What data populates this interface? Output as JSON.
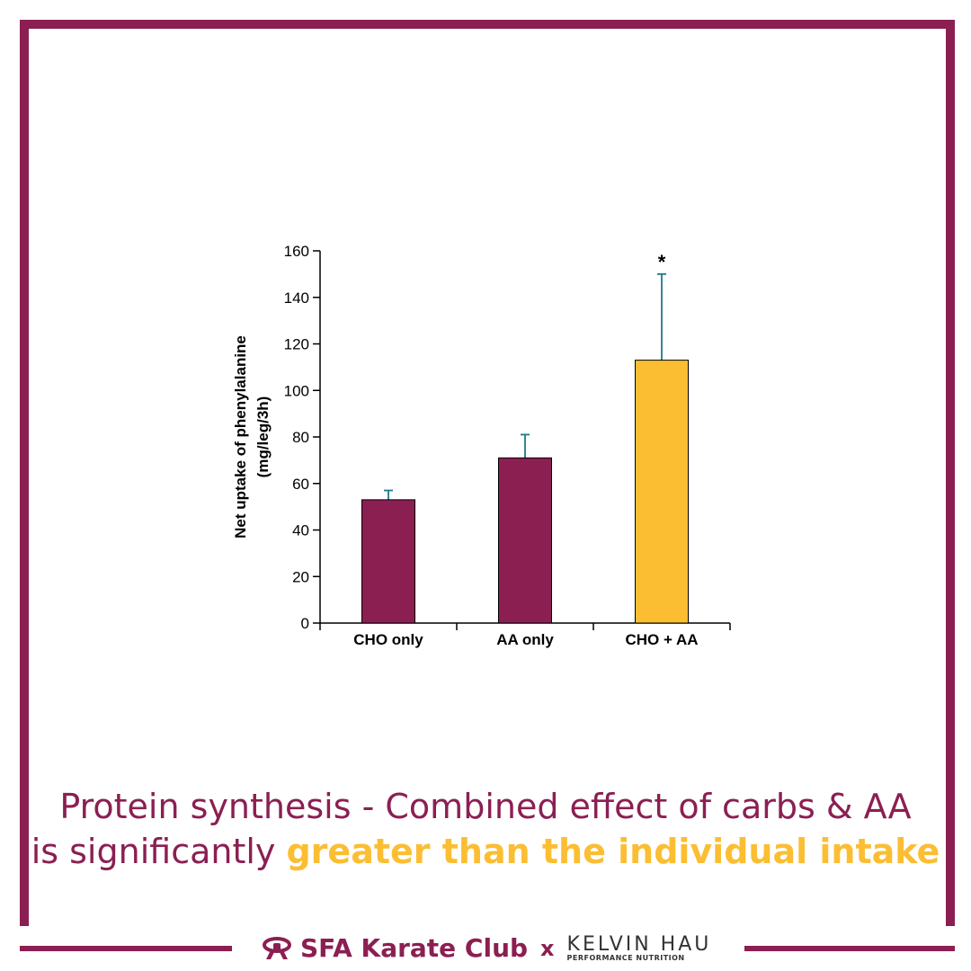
{
  "chart_data": {
    "type": "bar",
    "categories": [
      "CHO only",
      "AA only",
      "CHO + AA"
    ],
    "values": [
      53,
      71,
      113
    ],
    "error_upper": [
      57,
      81,
      150
    ],
    "ylabel_line1": "Net uptake of phenylalanine",
    "ylabel_line2": "(mg/leg/3h)",
    "ylim": [
      0,
      160
    ],
    "yticks": [
      0,
      20,
      40,
      60,
      80,
      100,
      120,
      140,
      160
    ],
    "bar_colors": [
      "#8b1f52",
      "#8b1f52",
      "#fbbe33"
    ],
    "error_color": "#1e7a8c",
    "significance_marker": "*",
    "significance_index": 2
  },
  "caption": {
    "line1": "Protein synthesis - Combined effect of carbs & AA",
    "line2_plain": "is significantly ",
    "line2_highlight": "greater than the individual intake"
  },
  "footer": {
    "brand": "SFA Karate Club",
    "separator": "x",
    "partner_name": "KELVIN HAU",
    "partner_sub": "PERFORMANCE NUTRITION",
    "brand_icon": "karate-belt-icon"
  },
  "colors": {
    "primary": "#8b1f52",
    "accent": "#fbbe33"
  }
}
